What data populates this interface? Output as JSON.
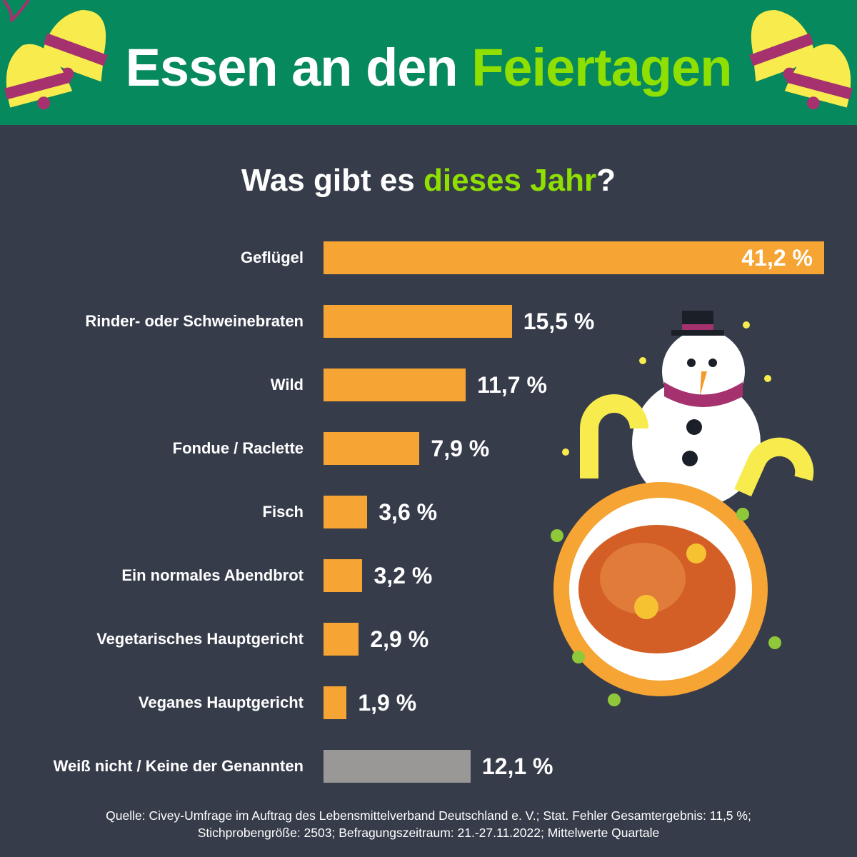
{
  "header": {
    "title_part1": "Essen an den",
    "title_part2": "Feiertagen"
  },
  "subtitle": {
    "part1": "Was gibt es",
    "part2": "dieses Jahr",
    "part3": "?"
  },
  "colors": {
    "header_bg": "#06895c",
    "bg": "#363c4a",
    "bar": "#f6a433",
    "bar_other": "#999896",
    "accent": "#8fe000"
  },
  "chart_data": {
    "type": "bar",
    "orientation": "horizontal",
    "title": "Was gibt es dieses Jahr?",
    "categories": [
      "Geflügel",
      "Rinder- oder Schweinebraten",
      "Wild",
      "Fondue / Raclette",
      "Fisch",
      "Ein normales Abendbrot",
      "Vegetarisches Hauptgericht",
      "Veganes Hauptgericht",
      "Weiß nicht / Keine der Genannten"
    ],
    "values": [
      41.2,
      15.5,
      11.7,
      7.9,
      3.6,
      3.2,
      2.9,
      1.9,
      12.1
    ],
    "labels": [
      "41,2 %",
      "15,5 %",
      "11,7 %",
      "7,9 %",
      "3,6 %",
      "3,2 %",
      "2,9 %",
      "1,9 %",
      "12,1 %"
    ],
    "xlim": [
      0,
      41.2
    ],
    "unit": "%",
    "grid": false
  },
  "source": {
    "line1": "Quelle: Civey-Umfrage im Auftrag des Lebensmittelverband Deutschland e. V.; Stat. Fehler Gesamtergebnis: 11,5 %;",
    "line2": "Stichprobengröße: 2503; Befragungszeitraum: 21.-27.11.2022; Mittelwerte Quartale"
  }
}
